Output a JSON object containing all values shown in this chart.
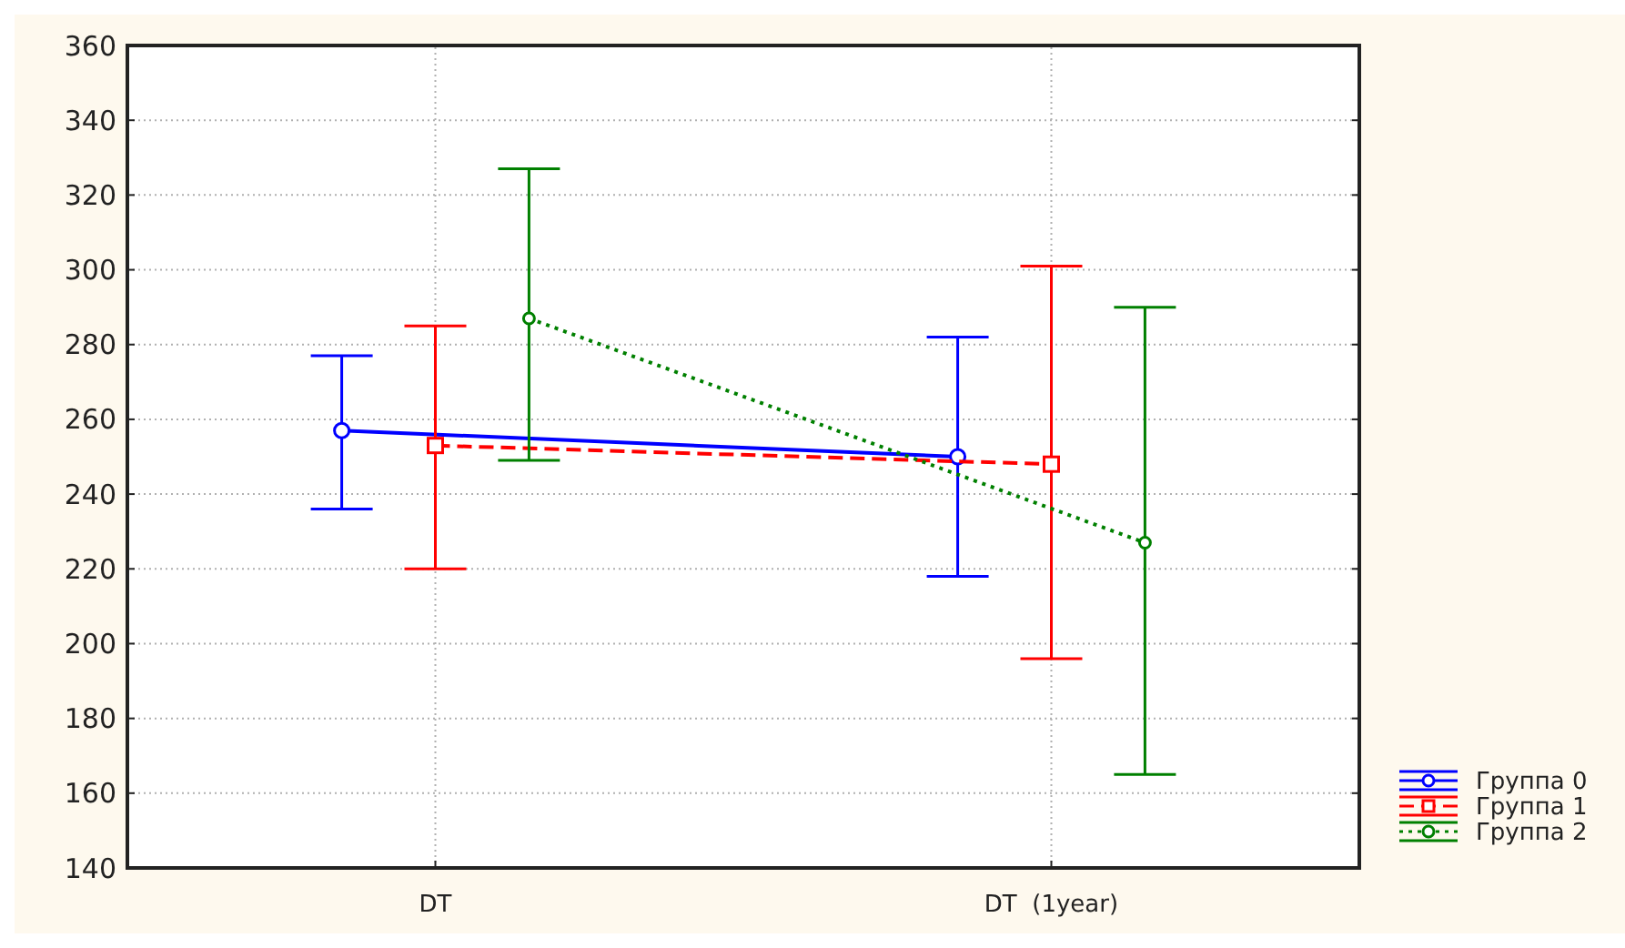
{
  "chart_data": {
    "type": "line",
    "categories": [
      "DT",
      "DT  (1year)"
    ],
    "series": [
      {
        "name": "Группа 0",
        "color": "#0000ff",
        "values": [
          257,
          250
        ],
        "errors": [
          [
            236,
            277
          ],
          [
            218,
            282
          ]
        ],
        "marker": "circle",
        "line_style": "solid"
      },
      {
        "name": "Группа 1",
        "color": "#ff0000",
        "values": [
          253,
          248
        ],
        "errors": [
          [
            220,
            285
          ],
          [
            196,
            301
          ]
        ],
        "marker": "square",
        "line_style": "dashed"
      },
      {
        "name": "Группа 2",
        "color": "#008000",
        "values": [
          287,
          227
        ],
        "errors": [
          [
            249,
            327
          ],
          [
            165,
            290
          ]
        ],
        "marker": "circle",
        "line_style": "dotted"
      }
    ],
    "ylim": [
      140,
      360
    ],
    "yticks": [
      140,
      160,
      180,
      200,
      220,
      240,
      260,
      280,
      300,
      320,
      340,
      360
    ],
    "grid": true,
    "legend": "bottom right"
  }
}
